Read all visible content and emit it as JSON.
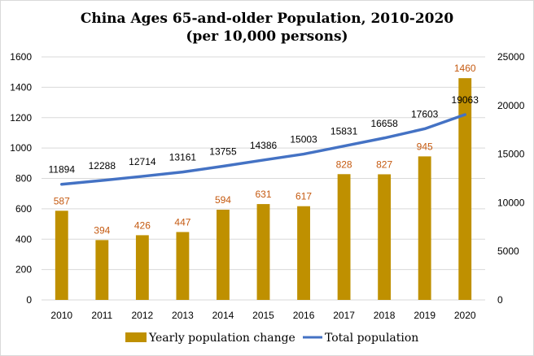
{
  "chart_data": {
    "type": "bar",
    "title": "China Ages 65-and-older Population, 2010-2020",
    "subtitle": "(per 10,000 persons)",
    "categories": [
      "2010",
      "2011",
      "2012",
      "2013",
      "2014",
      "2015",
      "2016",
      "2017",
      "2018",
      "2019",
      "2020"
    ],
    "series": [
      {
        "name": "Yearly population change",
        "type": "bar",
        "axis": "left",
        "color": "#bf9000",
        "label_color": "#c55a11",
        "values": [
          587,
          394,
          426,
          447,
          594,
          631,
          617,
          828,
          827,
          945,
          1460
        ]
      },
      {
        "name": "Total population",
        "type": "line",
        "axis": "right",
        "color": "#4472c4",
        "values": [
          11894,
          12288,
          12714,
          13161,
          13755,
          14386,
          15003,
          15831,
          16658,
          17603,
          19063
        ]
      }
    ],
    "ylim_left": [
      0,
      1600
    ],
    "yticks_left": [
      0,
      200,
      400,
      600,
      800,
      1000,
      1200,
      1400,
      1600
    ],
    "ylim_right": [
      0,
      25000
    ],
    "yticks_right": [
      0,
      5000,
      10000,
      15000,
      20000,
      25000
    ],
    "grid": true,
    "legend_position": "bottom"
  }
}
